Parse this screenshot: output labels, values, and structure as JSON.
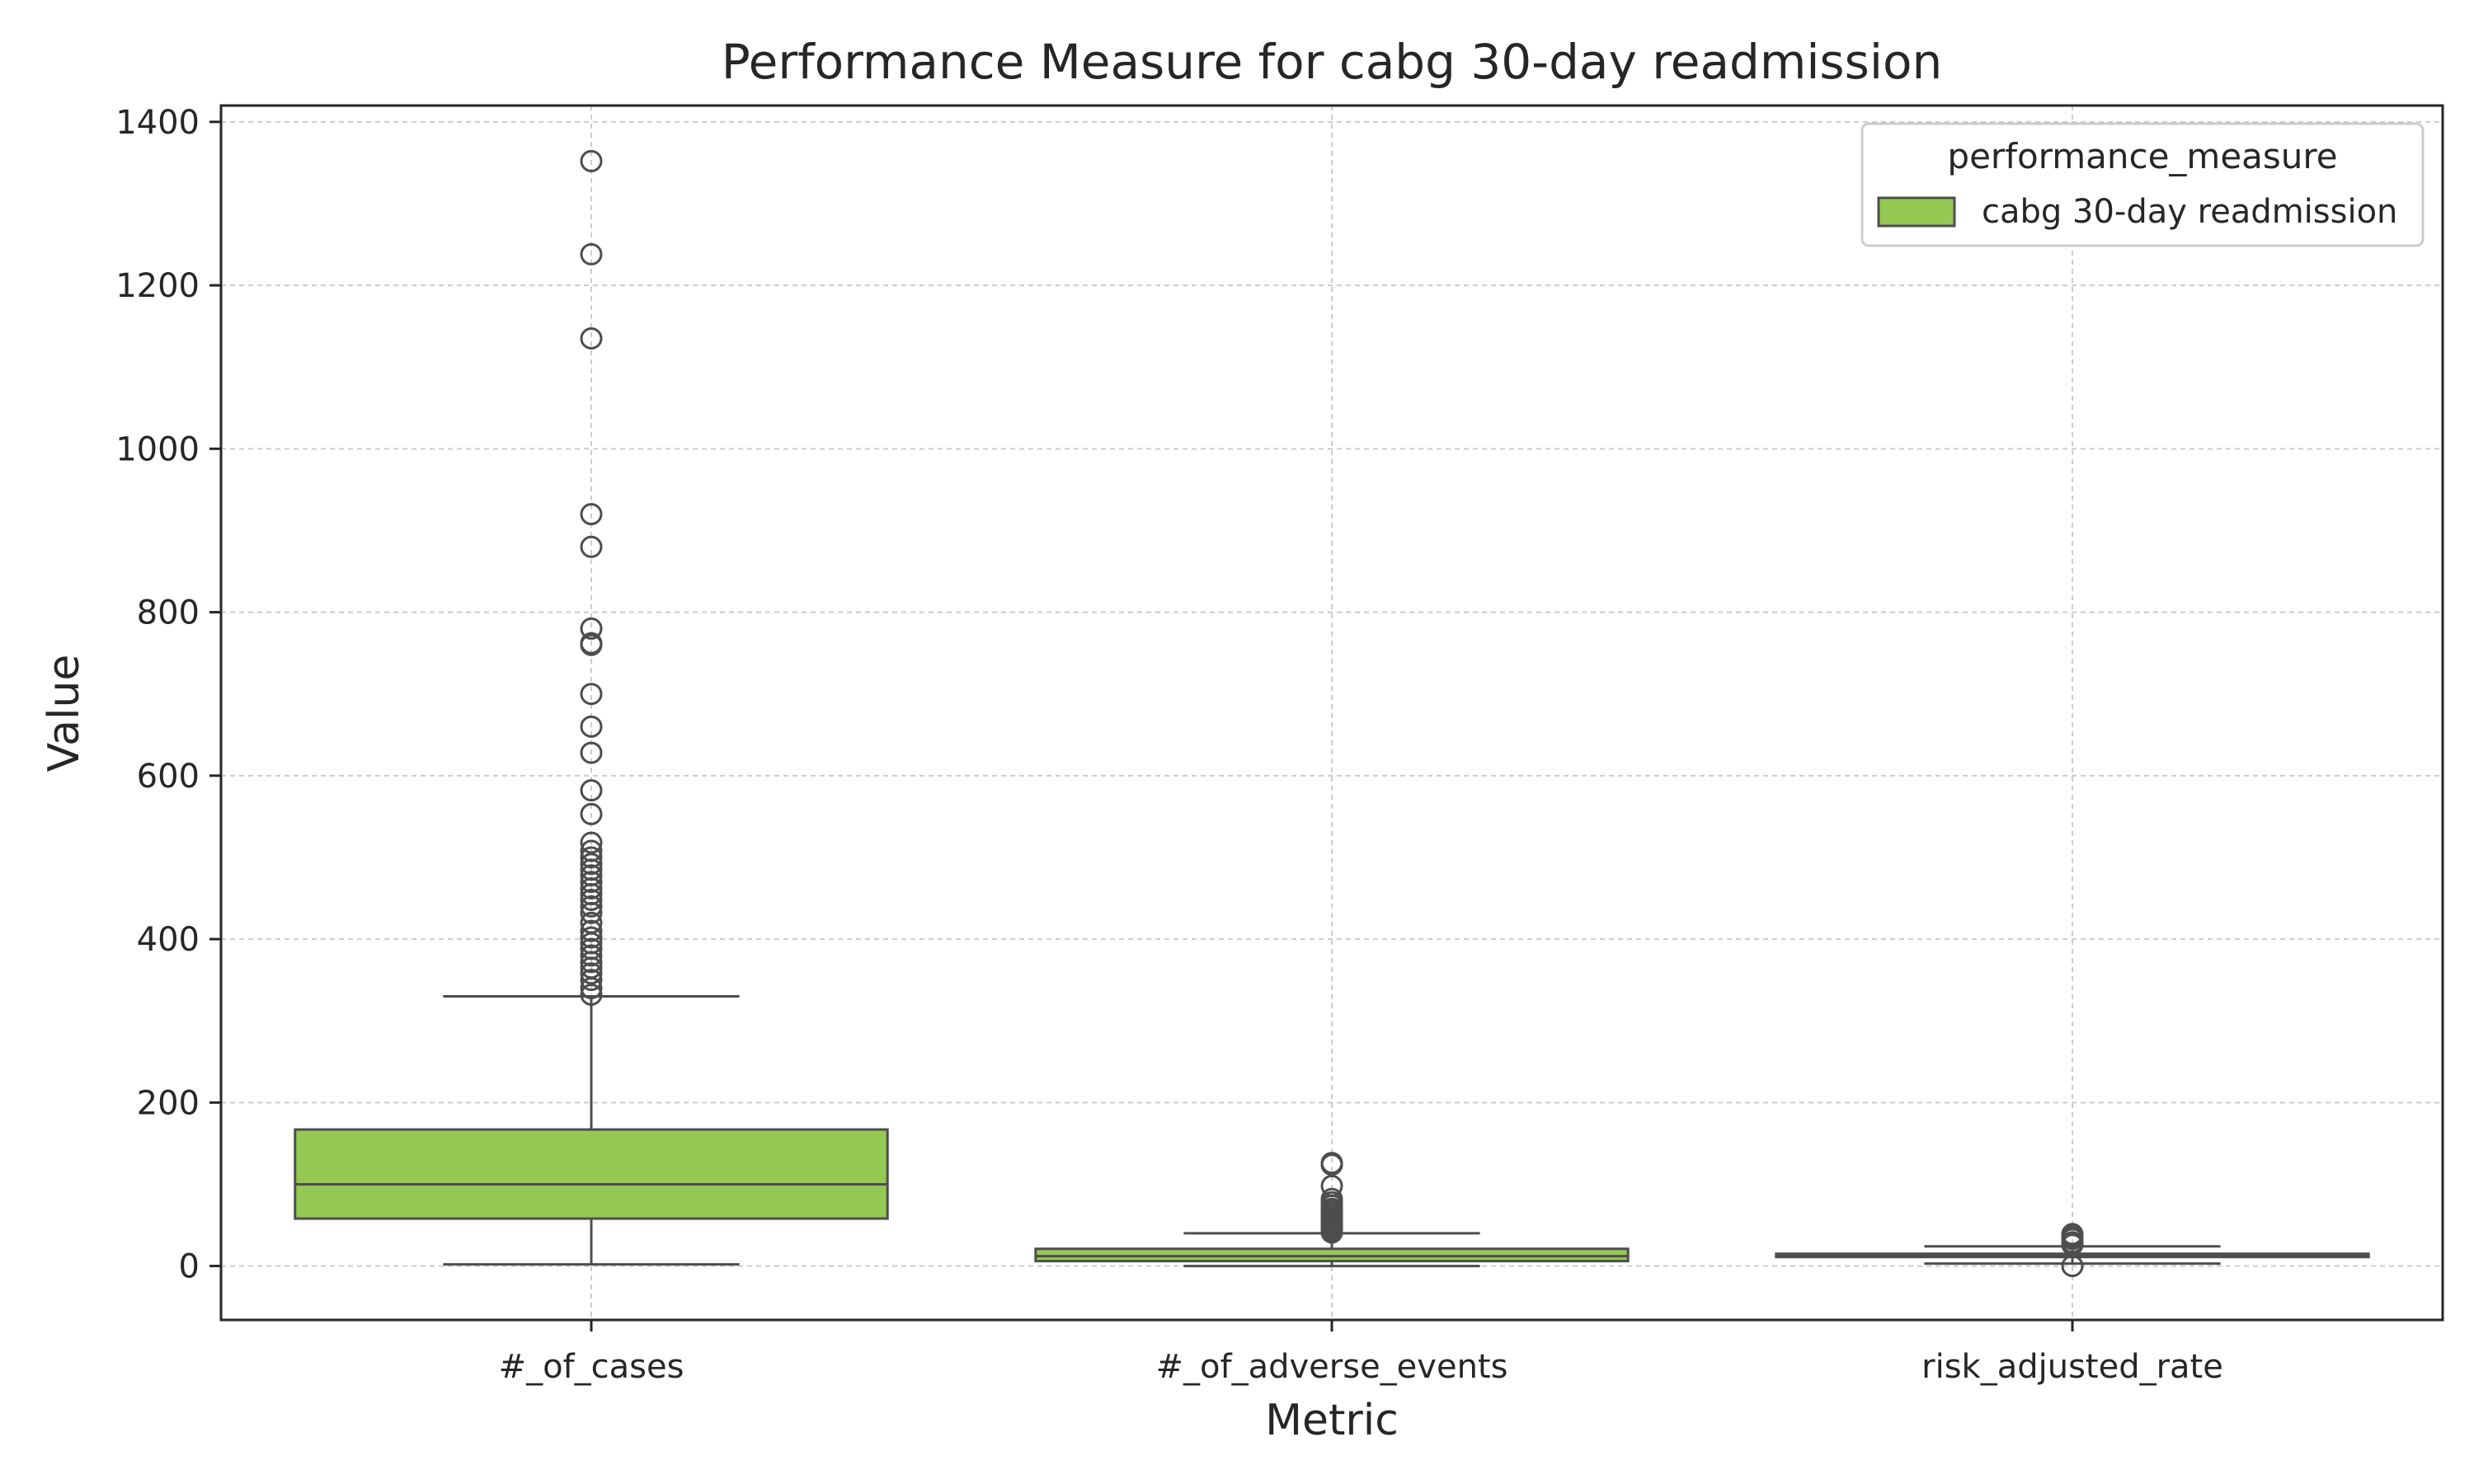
{
  "chart_data": {
    "type": "box",
    "title": "Performance Measure for cabg 30-day readmission",
    "xlabel": "Metric",
    "ylabel": "Value",
    "ylim": [
      -66,
      1420
    ],
    "yticks": [
      0,
      200,
      400,
      600,
      800,
      1000,
      1200,
      1400
    ],
    "categories": [
      "#_of_cases",
      "#_of_adverse_events",
      "risk_adjusted_rate"
    ],
    "grid": true,
    "legend": {
      "title": "performance_measure",
      "placement": "top-right",
      "entries": [
        "cabg 30-day readmission"
      ]
    },
    "colors": {
      "box_fill": "#94c852",
      "box_line": "#4d4d4d",
      "grid": "#cccccc",
      "text": "#262626"
    },
    "series": [
      {
        "name": "cabg 30-day readmission",
        "boxes": [
          {
            "category": "#_of_cases",
            "whisker_low": 2,
            "q1": 58,
            "median": 100,
            "q3": 167,
            "whisker_high": 330,
            "outliers": [
              332,
              340,
              350,
              358,
              365,
              372,
              380,
              388,
              395,
              402,
              410,
              420,
              432,
              440,
              448,
              455,
              462,
              470,
              478,
              485,
              492,
              500,
              508,
              518,
              553,
              582,
              628,
              660,
              700,
              760,
              762,
              780,
              880,
              920,
              1135,
              1238,
              1352
            ]
          },
          {
            "category": "#_of_adverse_events",
            "whisker_low": 0,
            "q1": 6,
            "median": 12,
            "q3": 21,
            "whisker_high": 40,
            "outliers": [
              41,
              43,
              45,
              47,
              49,
              52,
              55,
              58,
              61,
              64,
              67,
              70,
              74,
              78,
              82,
              98,
              124,
              126
            ]
          },
          {
            "category": "risk_adjusted_rate",
            "whisker_low": 3,
            "q1": 11,
            "median": 13,
            "q3": 15,
            "whisker_high": 24,
            "outliers": [
              0,
              26,
              29,
              33,
              36,
              39
            ]
          }
        ]
      }
    ]
  }
}
